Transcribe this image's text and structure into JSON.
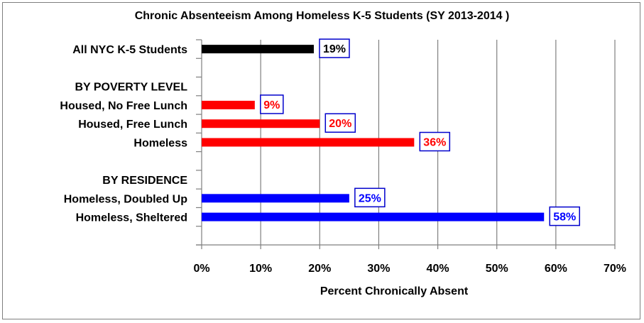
{
  "chart_data": {
    "type": "bar",
    "orientation": "horizontal",
    "title": "Chronic Absenteeism Among Homeless K-5 Students (SY 2013-2014 )",
    "xlabel": "Percent  Chronically Absent",
    "ylabel": "",
    "xlim": [
      0,
      70
    ],
    "x_ticks": [
      "0%",
      "10%",
      "20%",
      "30%",
      "40%",
      "50%",
      "60%",
      "70%"
    ],
    "grid": "vertical",
    "rows": [
      {
        "label": "All NYC K-5 Students",
        "value": 19,
        "data_label": "19%",
        "color": "#000000",
        "label_color": "#000000"
      },
      {
        "label": "",
        "value": null
      },
      {
        "label": "BY POVERTY LEVEL",
        "value": null
      },
      {
        "label": "Housed, No Free Lunch",
        "value": 9,
        "data_label": "9%",
        "color": "#ff0000",
        "label_color": "#ff0000"
      },
      {
        "label": "Housed, Free Lunch",
        "value": 20,
        "data_label": "20%",
        "color": "#ff0000",
        "label_color": "#ff0000"
      },
      {
        "label": "Homeless",
        "value": 36,
        "data_label": "36%",
        "color": "#ff0000",
        "label_color": "#ff0000"
      },
      {
        "label": "",
        "value": null
      },
      {
        "label": "BY RESIDENCE",
        "value": null
      },
      {
        "label": "Homeless, Doubled Up",
        "value": 25,
        "data_label": "25%",
        "color": "#0000ff",
        "label_color": "#0000ff"
      },
      {
        "label": "Homeless, Sheltered",
        "value": 58,
        "data_label": "58%",
        "color": "#0000ff",
        "label_color": "#0000ff"
      },
      {
        "label": "",
        "value": null
      }
    ],
    "data_label_box_color": "#0000cc"
  }
}
